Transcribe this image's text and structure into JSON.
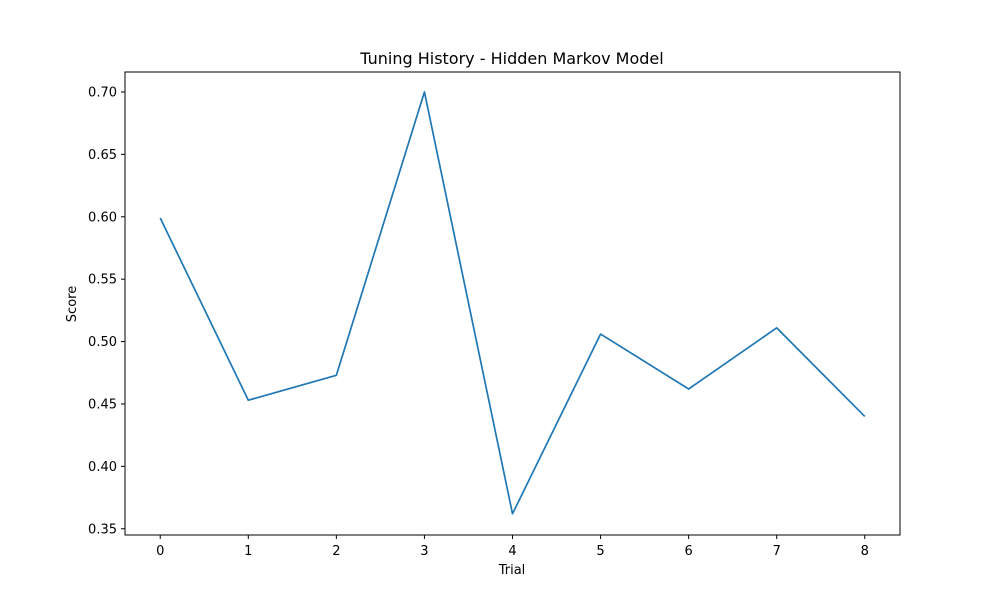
{
  "chart_data": {
    "type": "line",
    "title": "Tuning History - Hidden Markov Model",
    "xlabel": "Trial",
    "ylabel": "Score",
    "x": [
      0,
      1,
      2,
      3,
      4,
      5,
      6,
      7,
      8
    ],
    "series": [
      {
        "values": [
          0.599,
          0.453,
          0.473,
          0.7,
          0.362,
          0.506,
          0.462,
          0.511,
          0.44
        ],
        "color": "#1f77b4"
      }
    ],
    "xlim": [
      -0.4,
      8.4
    ],
    "ylim": [
      0.345,
      0.716
    ],
    "xticks": [
      0,
      1,
      2,
      3,
      4,
      5,
      6,
      7,
      8
    ],
    "yticks": [
      0.35,
      0.4,
      0.45,
      0.5,
      0.55,
      0.6,
      0.65,
      0.7
    ],
    "ytick_labels": [
      "0.35",
      "0.40",
      "0.45",
      "0.50",
      "0.55",
      "0.60",
      "0.65",
      "0.70"
    ],
    "grid": false,
    "legend": "none"
  }
}
